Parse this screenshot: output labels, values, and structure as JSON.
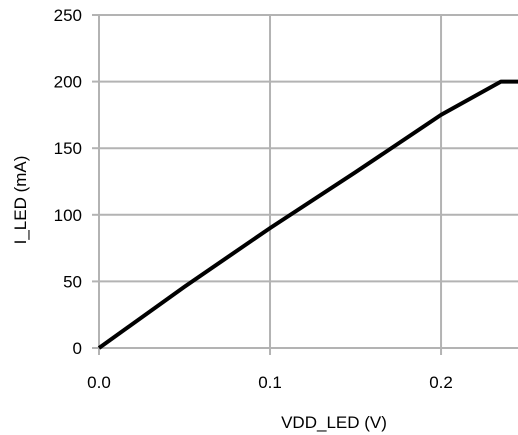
{
  "chart_data": {
    "type": "line",
    "title": "",
    "xlabel": "VDD_LED (V)",
    "ylabel": "I_LED (mA)",
    "xlim": [
      0.0,
      0.245
    ],
    "ylim": [
      0,
      250
    ],
    "x_ticks": [
      0.0,
      0.1,
      0.2
    ],
    "x_tick_labels": [
      "0.0",
      "0.1",
      "0.2"
    ],
    "y_ticks": [
      0,
      50,
      100,
      150,
      200,
      250
    ],
    "y_tick_labels": [
      "0",
      "50",
      "100",
      "150",
      "200",
      "250"
    ],
    "grid": true,
    "legend": "none",
    "series": [
      {
        "color": "#000000",
        "x": [
          0.0,
          0.05,
          0.1,
          0.15,
          0.2,
          0.235,
          0.245
        ],
        "y": [
          0,
          46,
          90,
          132,
          175,
          200,
          200
        ]
      }
    ]
  }
}
